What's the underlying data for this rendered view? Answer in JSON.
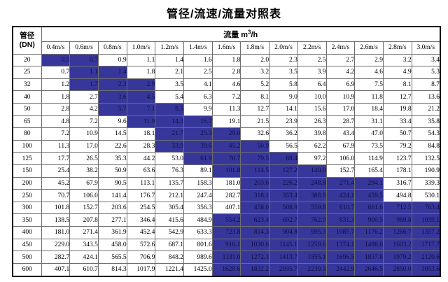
{
  "title": "管径/流速/流量对照表",
  "table": {
    "corner": {
      "line1": "管径",
      "line2": "(DN)"
    },
    "flow_header": {
      "prefix": "流量 m",
      "sup": "3",
      "suffix": "/h"
    },
    "velocity_headers": [
      "0.4m/s",
      "0.6m/s",
      "0.8m/s",
      "1.0m/s",
      "1.2m/s",
      "1.4m/s",
      "1.6m/s",
      "1.8m/s",
      "2.0m/s",
      "2.2m/s",
      "2.4m/s",
      "2.6m/s",
      "2.8m/s",
      "3.0m/s"
    ],
    "rows": [
      {
        "dn": "20",
        "values": [
          "0.5",
          "0.7",
          "0.9",
          "1.1",
          "1.4",
          "1.6",
          "1.8",
          "2.0",
          "2.3",
          "2.5",
          "2.7",
          "2.9",
          "3.2",
          "3.4"
        ],
        "highlight": [
          0,
          1
        ]
      },
      {
        "dn": "25",
        "values": [
          "0.7",
          "1.1",
          "1.4",
          "1.8",
          "2.1",
          "2.5",
          "2.8",
          "3.2",
          "3.5",
          "3.9",
          "4.2",
          "4.6",
          "4.9",
          "5.3"
        ],
        "highlight": [
          1,
          2
        ]
      },
      {
        "dn": "32",
        "values": [
          "1.2",
          "1.7",
          "2.3",
          "2.9",
          "3.5",
          "4.1",
          "4.6",
          "5.2",
          "5.8",
          "6.4",
          "6.9",
          "7.5",
          "8.1",
          "8.7"
        ],
        "highlight": [
          1,
          3
        ]
      },
      {
        "dn": "40",
        "values": [
          "1.8",
          "2.7",
          "3.6",
          "4.5",
          "5.4",
          "6.3",
          "7.2",
          "8.1",
          "9.0",
          "10.0",
          "10.9",
          "11.8",
          "12.7",
          "13.6"
        ],
        "highlight": [
          2,
          3
        ]
      },
      {
        "dn": "50",
        "values": [
          "2.8",
          "4.2",
          "5.7",
          "7.1",
          "8.5",
          "9.9",
          "11.3",
          "12.7",
          "14.1",
          "15.6",
          "17.0",
          "18.4",
          "19.8",
          "21.2"
        ],
        "highlight": [
          2,
          4
        ]
      },
      {
        "dn": "65",
        "values": [
          "4.8",
          "7.2",
          "9.6",
          "11.9",
          "14.3",
          "16.7",
          "19.1",
          "21.5",
          "23.9",
          "26.3",
          "28.7",
          "31.1",
          "33.4",
          "35.8"
        ],
        "highlight": [
          3,
          5
        ]
      },
      {
        "dn": "80",
        "values": [
          "7.2",
          "10.9",
          "14.5",
          "18.1",
          "21.7",
          "25.3",
          "29.0",
          "32.6",
          "36.2",
          "39.8",
          "43.4",
          "47.0",
          "50.7",
          "54.3"
        ],
        "highlight": [
          4,
          6
        ]
      },
      {
        "dn": "100",
        "values": [
          "11.3",
          "17.0",
          "22.6",
          "28.3",
          "33.9",
          "39.6",
          "45.2",
          "50.9",
          "56.5",
          "62.2",
          "67.9",
          "73.5",
          "79.2",
          "84.8"
        ],
        "highlight": [
          4,
          7
        ]
      },
      {
        "dn": "125",
        "values": [
          "17.7",
          "26.5",
          "35.3",
          "44.2",
          "53.0",
          "61.9",
          "70.7",
          "79.5",
          "88.4",
          "97.2",
          "106.0",
          "114.9",
          "123.7",
          "132.5"
        ],
        "highlight": [
          5,
          8
        ]
      },
      {
        "dn": "150",
        "values": [
          "25.4",
          "38.2",
          "50.9",
          "63.6",
          "76.3",
          "89.1",
          "101.8",
          "114.5",
          "127.2",
          "140.0",
          "152.7",
          "165.4",
          "178.1",
          "190.9"
        ],
        "highlight": [
          6,
          9
        ]
      },
      {
        "dn": "200",
        "values": [
          "45.2",
          "67.9",
          "90.5",
          "113.1",
          "135.7",
          "158.3",
          "181.0",
          "203.6",
          "226.2",
          "248.8",
          "271.4",
          "294.1",
          "316.7",
          "339.3"
        ],
        "highlight": [
          7,
          11
        ]
      },
      {
        "dn": "250",
        "values": [
          "70.7",
          "106.0",
          "141.4",
          "176.7",
          "212.1",
          "247.4",
          "282.7",
          "318.1",
          "353.4",
          "388.8",
          "424.1",
          "459.5",
          "494.8",
          "530.1"
        ],
        "highlight": [
          7,
          11
        ]
      },
      {
        "dn": "300",
        "values": [
          "101.8",
          "152.7",
          "203.6",
          "254.5",
          "305.4",
          "356.3",
          "407.1",
          "458.0",
          "508.9",
          "559.8",
          "610.7",
          "661.6",
          "712.5",
          "763.4"
        ],
        "highlight": [
          7,
          13
        ]
      },
      {
        "dn": "350",
        "values": [
          "138.5",
          "207.8",
          "277.1",
          "346.4",
          "415.6",
          "484.9",
          "554.2",
          "623.4",
          "692.7",
          "762.0",
          "831.3",
          "900.5",
          "969.8",
          "1039.1"
        ],
        "highlight": [
          6,
          13
        ]
      },
      {
        "dn": "400",
        "values": [
          "181.0",
          "271.4",
          "361.9",
          "452.4",
          "542.9",
          "633.3",
          "723.8",
          "814.3",
          "904.8",
          "995.3",
          "1085.7",
          "1176.2",
          "1266.7",
          "1357.2"
        ],
        "highlight": [
          6,
          13
        ]
      },
      {
        "dn": "450",
        "values": [
          "229.0",
          "343.5",
          "458.0",
          "572.6",
          "687.1",
          "801.6",
          "916.1",
          "1030.6",
          "1145.1",
          "1259.6",
          "1374.1",
          "1488.6",
          "1603.2",
          "1717.7"
        ],
        "highlight": [
          6,
          13
        ]
      },
      {
        "dn": "500",
        "values": [
          "282.7",
          "424.1",
          "565.5",
          "706.9",
          "848.2",
          "989.6",
          "1131.0",
          "1272.3",
          "1413.7",
          "1555.1",
          "1696.5",
          "1837.8",
          "1979.2",
          "2120.6"
        ],
        "highlight": [
          6,
          13
        ]
      },
      {
        "dn": "600",
        "values": [
          "407.1",
          "610.7",
          "814.3",
          "1017.9",
          "1221.4",
          "1425.0",
          "1628.6",
          "1832.2",
          "2035.7",
          "2239.3",
          "2442.9",
          "2646.5",
          "2850.0",
          "3053.6"
        ],
        "highlight": [
          6,
          13
        ]
      }
    ]
  },
  "colors": {
    "highlight_bg": "#37379B",
    "highlight_text": "#0d0d45",
    "grid_border": "#6e6e6e",
    "outer_border": "#000000"
  }
}
